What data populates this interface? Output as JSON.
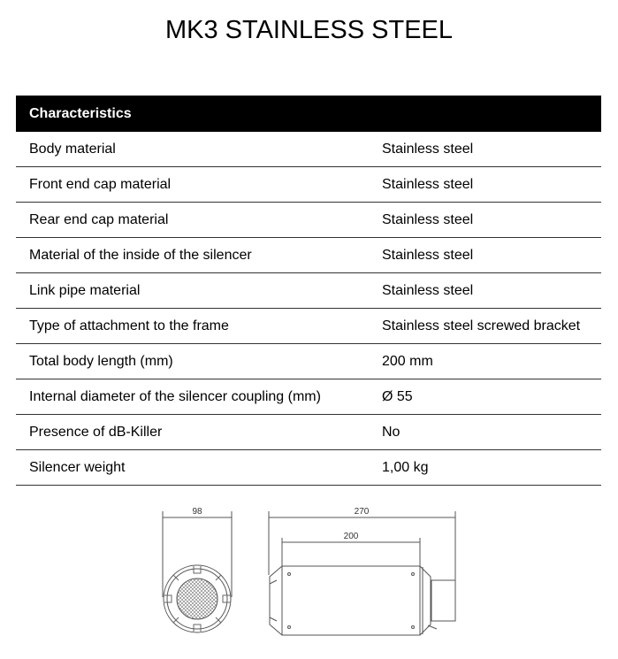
{
  "title": "MK3 STAINLESS STEEL",
  "table": {
    "header": "Characteristics",
    "rows": [
      [
        "Body material",
        "Stainless steel"
      ],
      [
        "Front end cap material",
        "Stainless steel"
      ],
      [
        "Rear end cap material",
        "Stainless steel"
      ],
      [
        "Material of the inside of the silencer",
        "Stainless steel"
      ],
      [
        "Link pipe material",
        "Stainless steel"
      ],
      [
        "Type of attachment to the frame",
        "Stainless steel screwed bracket"
      ],
      [
        "Total body length (mm)",
        "200 mm"
      ],
      [
        "Internal diameter of the silencer coupling (mm)",
        "Ø 55"
      ],
      [
        "Presence of dB-Killer",
        "No"
      ],
      [
        "Silencer weight",
        "1,00 kg"
      ]
    ]
  },
  "drawing": {
    "diameter": "98",
    "total_length": "270",
    "body_length": "200"
  }
}
